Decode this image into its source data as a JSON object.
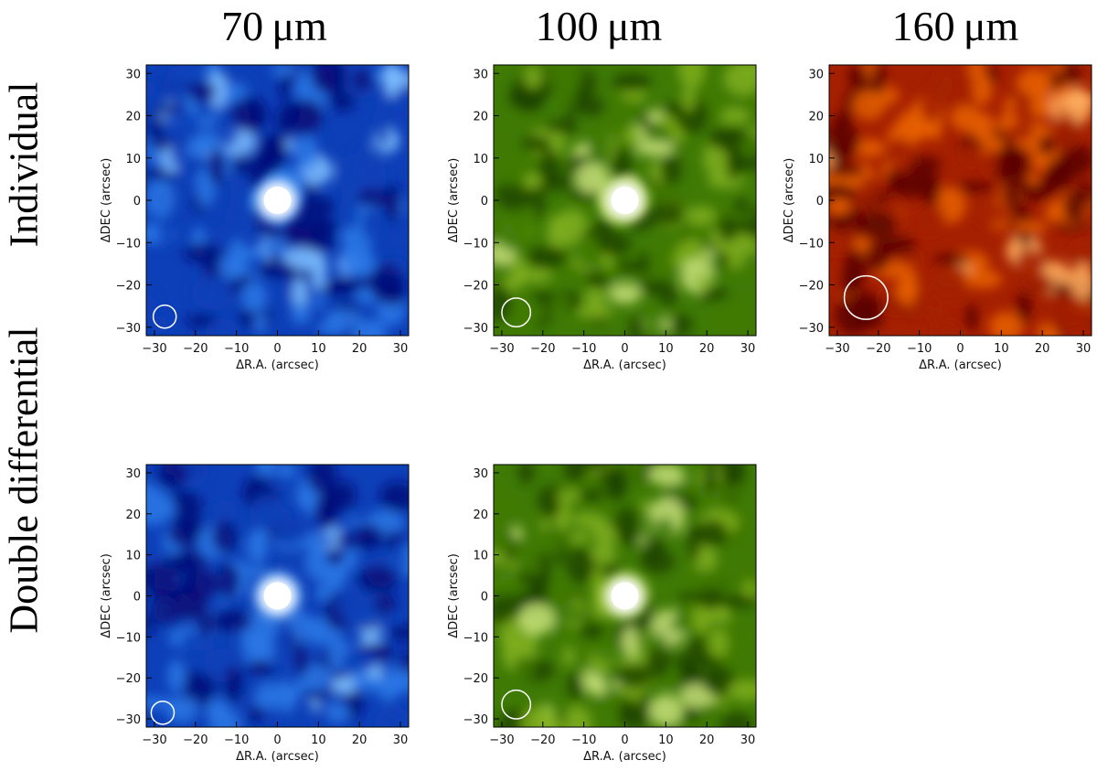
{
  "columns": [
    {
      "label": "70 μm"
    },
    {
      "label": "100 μm"
    },
    {
      "label": "160 μm"
    }
  ],
  "rows": [
    {
      "label": "Individual"
    },
    {
      "label": "Double differential"
    }
  ],
  "axes": {
    "xlabel": "ΔR.A. (arcsec)",
    "ylabel": "ΔDEC (arcsec)",
    "range": [
      -32,
      32
    ],
    "ticks": [
      -30,
      -20,
      -10,
      0,
      10,
      20,
      30
    ]
  },
  "colormaps": {
    "blue": [
      "#07107a",
      "#0d3fb8",
      "#2a78e6",
      "#7fc0ff",
      "#ffffff"
    ],
    "green": [
      "#1f4400",
      "#3f7a05",
      "#7fae1c",
      "#c7e07a",
      "#ffffff"
    ],
    "red": [
      "#5a0500",
      "#a52000",
      "#e86000",
      "#ffb060",
      "#ffffff"
    ]
  },
  "panels": [
    {
      "id": "70um-individual",
      "row": 0,
      "col": 0,
      "cmap": "blue",
      "beam": {
        "x": -27.5,
        "y": -27.5,
        "r": 2.8
      },
      "seed": 11,
      "source": true
    },
    {
      "id": "100um-individual",
      "row": 0,
      "col": 1,
      "cmap": "green",
      "beam": {
        "x": -26.5,
        "y": -26.5,
        "r": 3.5
      },
      "seed": 23,
      "source": true
    },
    {
      "id": "160um-individual",
      "row": 0,
      "col": 2,
      "cmap": "red",
      "beam": {
        "x": -23,
        "y": -23,
        "r": 5.3
      },
      "seed": 37,
      "source": false
    },
    {
      "id": "70um-double-differential",
      "row": 1,
      "col": 0,
      "cmap": "blue",
      "beam": {
        "x": -28,
        "y": -28.5,
        "r": 2.8
      },
      "seed": 41,
      "source": true
    },
    {
      "id": "100um-double-differential",
      "row": 1,
      "col": 1,
      "cmap": "green",
      "beam": {
        "x": -26.5,
        "y": -26.5,
        "r": 3.5
      },
      "seed": 53,
      "source": true
    }
  ]
}
